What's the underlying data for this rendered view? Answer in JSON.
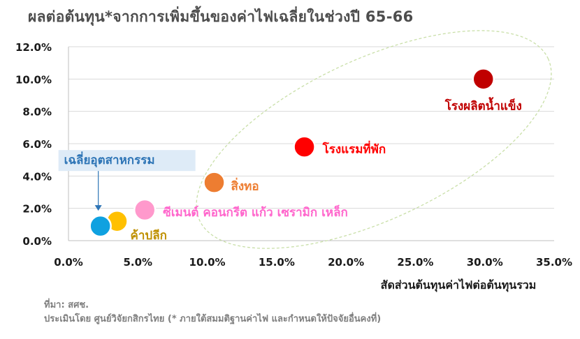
{
  "title": "ผลต่อต้นทุน*จากการเพิ่มขึ้นของค่าไฟเฉลี่ยในช่วงปี 65-66",
  "source_line1": "ที่มา: สศช.",
  "source_line2": "ประเมินโดย ศูนย์วิจัยกสิกรไทย (* ภายใต้สมมติฐานค่าไฟ และกำหนดให้ปัจจัยอื่นคงที่)",
  "chart_data": {
    "type": "scatter",
    "xlabel": "สัดส่วนต้นทุนค่าไฟต่อต้นทุนรวม",
    "ylabel": "",
    "xlim": [
      0,
      35
    ],
    "ylim": [
      0,
      12
    ],
    "x_ticks": [
      "0.0%",
      "5.0%",
      "10.0%",
      "15.0%",
      "20.0%",
      "25.0%",
      "30.0%",
      "35.0%"
    ],
    "y_ticks": [
      "0.0%",
      "2.0%",
      "4.0%",
      "6.0%",
      "8.0%",
      "10.0%",
      "12.0%"
    ],
    "grid": "horizontal",
    "points": [
      {
        "label": "โรงผลิตน้ำแข็ง",
        "x": 29.9,
        "y": 10.0,
        "color": "#c00000",
        "label_color": "#c00000"
      },
      {
        "label": "โรงแรมที่พัก",
        "x": 17.0,
        "y": 5.8,
        "color": "#ff0000",
        "label_color": "#ff0000"
      },
      {
        "label": "สิ่งทอ",
        "x": 10.5,
        "y": 3.6,
        "color": "#ed7d31",
        "label_color": "#ed7d31"
      },
      {
        "label": "ซีเมนต์ คอนกรีต แก้ว เซรามิก เหล็ก",
        "x": 5.5,
        "y": 1.9,
        "color": "#ff99cc",
        "label_color": "#ff66cc"
      },
      {
        "label": "ค้าปลีก",
        "x": 3.5,
        "y": 1.2,
        "color": "#ffc000",
        "label_color": "#bf9000"
      },
      {
        "label": "เฉลี่ยอุตสาหกรรม",
        "x": 2.3,
        "y": 0.9,
        "color": "#0fa1e0",
        "label_color": "#2e75b6"
      }
    ]
  }
}
